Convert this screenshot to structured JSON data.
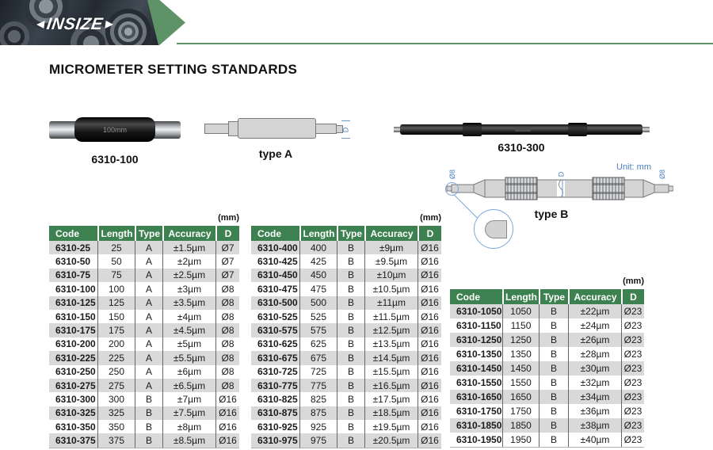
{
  "header": {
    "logo_text": "INSIZE"
  },
  "title": "MICROMETER SETTING STANDARDS",
  "products": {
    "p100": {
      "caption": "6310-100",
      "sleeve_label": "100mm"
    },
    "typeA": {
      "caption": "type A",
      "dim": "D"
    },
    "p300": {
      "caption": "6310-300"
    },
    "typeB": {
      "caption": "type B",
      "dim_left": "Ø8",
      "dim_mid": "D",
      "dim_right": "Ø8",
      "unit_note": "Unit: mm"
    }
  },
  "tables": [
    {
      "unit": "(mm)",
      "columns": [
        "Code",
        "Length",
        "Type",
        "Accuracy",
        "D"
      ],
      "rows": [
        [
          "6310-25",
          "25",
          "A",
          "±1.5µm",
          "Ø7"
        ],
        [
          "6310-50",
          "50",
          "A",
          "±2µm",
          "Ø7"
        ],
        [
          "6310-75",
          "75",
          "A",
          "±2.5µm",
          "Ø7"
        ],
        [
          "6310-100",
          "100",
          "A",
          "±3µm",
          "Ø8"
        ],
        [
          "6310-125",
          "125",
          "A",
          "±3.5µm",
          "Ø8"
        ],
        [
          "6310-150",
          "150",
          "A",
          "±4µm",
          "Ø8"
        ],
        [
          "6310-175",
          "175",
          "A",
          "±4.5µm",
          "Ø8"
        ],
        [
          "6310-200",
          "200",
          "A",
          "±5µm",
          "Ø8"
        ],
        [
          "6310-225",
          "225",
          "A",
          "±5.5µm",
          "Ø8"
        ],
        [
          "6310-250",
          "250",
          "A",
          "±6µm",
          "Ø8"
        ],
        [
          "6310-275",
          "275",
          "A",
          "±6.5µm",
          "Ø8"
        ],
        [
          "6310-300",
          "300",
          "B",
          "±7µm",
          "Ø16"
        ],
        [
          "6310-325",
          "325",
          "B",
          "±7.5µm",
          "Ø16"
        ],
        [
          "6310-350",
          "350",
          "B",
          "±8µm",
          "Ø16"
        ],
        [
          "6310-375",
          "375",
          "B",
          "±8.5µm",
          "Ø16"
        ]
      ]
    },
    {
      "unit": "(mm)",
      "columns": [
        "Code",
        "Length",
        "Type",
        "Accuracy",
        "D"
      ],
      "rows": [
        [
          "6310-400",
          "400",
          "B",
          "±9µm",
          "Ø16"
        ],
        [
          "6310-425",
          "425",
          "B",
          "±9.5µm",
          "Ø16"
        ],
        [
          "6310-450",
          "450",
          "B",
          "±10µm",
          "Ø16"
        ],
        [
          "6310-475",
          "475",
          "B",
          "±10.5µm",
          "Ø16"
        ],
        [
          "6310-500",
          "500",
          "B",
          "±11µm",
          "Ø16"
        ],
        [
          "6310-525",
          "525",
          "B",
          "±11.5µm",
          "Ø16"
        ],
        [
          "6310-575",
          "575",
          "B",
          "±12.5µm",
          "Ø16"
        ],
        [
          "6310-625",
          "625",
          "B",
          "±13.5µm",
          "Ø16"
        ],
        [
          "6310-675",
          "675",
          "B",
          "±14.5µm",
          "Ø16"
        ],
        [
          "6310-725",
          "725",
          "B",
          "±15.5µm",
          "Ø16"
        ],
        [
          "6310-775",
          "775",
          "B",
          "±16.5µm",
          "Ø16"
        ],
        [
          "6310-825",
          "825",
          "B",
          "±17.5µm",
          "Ø16"
        ],
        [
          "6310-875",
          "875",
          "B",
          "±18.5µm",
          "Ø16"
        ],
        [
          "6310-925",
          "925",
          "B",
          "±19.5µm",
          "Ø16"
        ],
        [
          "6310-975",
          "975",
          "B",
          "±20.5µm",
          "Ø16"
        ]
      ]
    },
    {
      "unit": "(mm)",
      "columns": [
        "Code",
        "Length",
        "Type",
        "Accuracy",
        "D"
      ],
      "rows": [
        [
          "6310-1050",
          "1050",
          "B",
          "±22µm",
          "Ø23"
        ],
        [
          "6310-1150",
          "1150",
          "B",
          "±24µm",
          "Ø23"
        ],
        [
          "6310-1250",
          "1250",
          "B",
          "±26µm",
          "Ø23"
        ],
        [
          "6310-1350",
          "1350",
          "B",
          "±28µm",
          "Ø23"
        ],
        [
          "6310-1450",
          "1450",
          "B",
          "±30µm",
          "Ø23"
        ],
        [
          "6310-1550",
          "1550",
          "B",
          "±32µm",
          "Ø23"
        ],
        [
          "6310-1650",
          "1650",
          "B",
          "±34µm",
          "Ø23"
        ],
        [
          "6310-1750",
          "1750",
          "B",
          "±36µm",
          "Ø23"
        ],
        [
          "6310-1850",
          "1850",
          "B",
          "±38µm",
          "Ø23"
        ],
        [
          "6310-1950",
          "1950",
          "B",
          "±40µm",
          "Ø23"
        ]
      ]
    }
  ]
}
